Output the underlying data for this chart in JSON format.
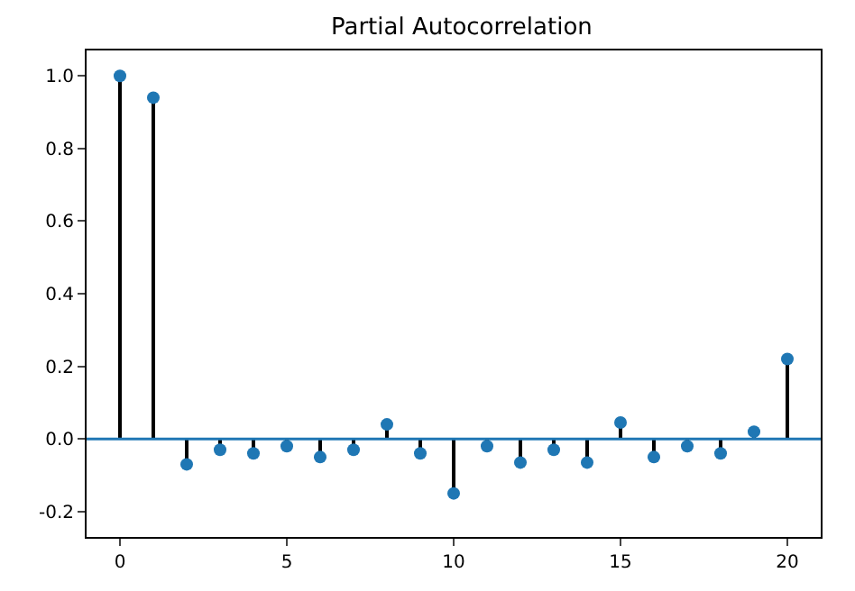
{
  "chart_data": {
    "type": "lollipop",
    "title": "Partial Autocorrelation",
    "x": [
      0,
      1,
      2,
      3,
      4,
      5,
      6,
      7,
      8,
      9,
      10,
      11,
      12,
      13,
      14,
      15,
      16,
      17,
      18,
      19,
      20
    ],
    "series": [
      {
        "color": "#1f77b4",
        "values": [
          1.0,
          0.94,
          -0.07,
          -0.03,
          -0.04,
          -0.02,
          -0.05,
          -0.03,
          0.04,
          -0.04,
          -0.15,
          -0.02,
          -0.065,
          -0.03,
          -0.065,
          0.045,
          -0.05,
          -0.02,
          -0.04,
          0.02,
          0.22
        ]
      }
    ],
    "xlim": [
      -1,
      21
    ],
    "xticks": [
      0,
      5,
      10,
      15,
      20
    ],
    "ylim": [
      -0.27,
      1.07
    ],
    "yticks": [
      -0.2,
      {
        "value": 0,
        "label": "0.0"
      },
      0.2,
      0.4,
      0.6,
      0.8,
      {
        "value": 1,
        "label": "1.0"
      }
    ],
    "ref_lines": [
      {
        "axis": "y",
        "value": 0,
        "color": "#1f77b4"
      }
    ],
    "marker": "circle"
  }
}
